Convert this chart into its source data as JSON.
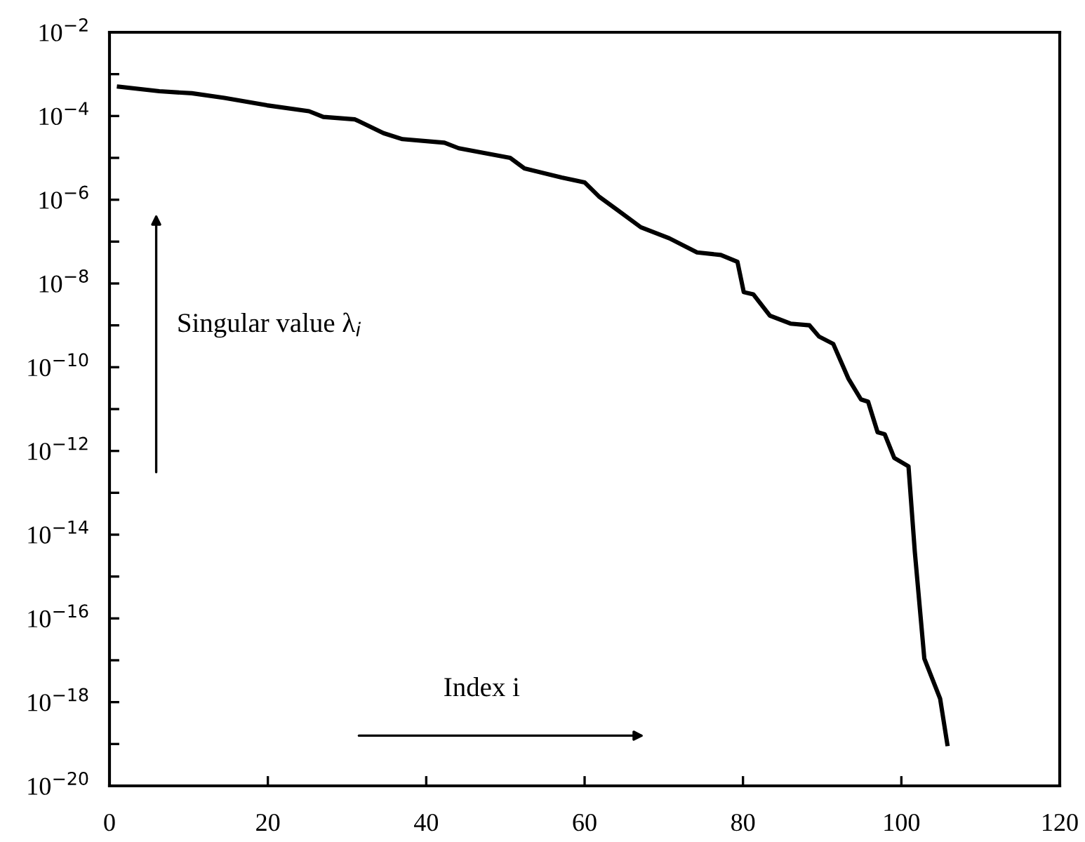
{
  "chart_data": {
    "type": "line",
    "annotations": [
      "Singular value λ$_{i}$",
      "Index i"
    ],
    "x": [
      1.2,
      6.3,
      10.4,
      14.5,
      19.9,
      25.2,
      27,
      31,
      34.6,
      37,
      42.3,
      44.1,
      50.6,
      52.4,
      57.1,
      60,
      61.8,
      64.2,
      67.1,
      70.7,
      74.2,
      77.2,
      79.3,
      80.1,
      81.3,
      83.4,
      86,
      88.4,
      89.6,
      91.4,
      93.3,
      94.9,
      95.8,
      97,
      97.9,
      99.1,
      100.9,
      101.7,
      102.9,
      104.9,
      105.8
    ],
    "series": [
      {
        "color": "#000000",
        "values": [
          0.0005,
          0.00039,
          0.00035,
          0.00027,
          0.00018,
          0.00013,
          9.5e-05,
          8.3e-05,
          3.9e-05,
          2.8e-05,
          2.3e-05,
          1.7e-05,
          1e-05,
          5.6e-06,
          3.4e-06,
          2.6e-06,
          1.2e-06,
          5.6e-07,
          2.2e-07,
          1.2e-07,
          5.5e-08,
          4.8e-08,
          3.3e-08,
          6.2e-09,
          5.5e-09,
          1.7e-09,
          1.1e-09,
          1e-09,
          5.4e-10,
          3.6e-10,
          5.4e-11,
          1.7e-11,
          1.5e-11,
          2.8e-12,
          2.5e-12,
          6.8e-13,
          4.3e-13,
          3.9e-15,
          1.1e-17,
          1.2e-18,
          1e-19
        ]
      }
    ],
    "log": "y",
    "xlim": [
      0,
      120
    ],
    "ylim": [
      1e-20,
      0.01
    ],
    "xticks": [
      0,
      20,
      40,
      60,
      80,
      100,
      120
    ],
    "yticks": [
      {
        "value": 1e-20,
        "label": "10$^{−20}$"
      },
      {
        "value": 1e-19,
        "label": null
      },
      {
        "value": 1e-18,
        "label": "10$^{−18}$"
      },
      {
        "value": 1e-17,
        "label": null
      },
      {
        "value": 1e-16,
        "label": "10$^{−16}$"
      },
      {
        "value": 1e-15,
        "label": null
      },
      {
        "value": 1e-14,
        "label": "10$^{−14}$"
      },
      {
        "value": 1e-13,
        "label": null
      },
      {
        "value": 1e-12,
        "label": "10$^{−12}$"
      },
      {
        "value": 1e-11,
        "label": null
      },
      {
        "value": 1e-10,
        "label": "10$^{−10}$"
      },
      {
        "value": 1e-09,
        "label": null
      },
      {
        "value": 1e-08,
        "label": "10$^{−8}$"
      },
      {
        "value": 1e-07,
        "label": null
      },
      {
        "value": 1e-06,
        "label": "10$^{−6}$"
      },
      {
        "value": 1e-05,
        "label": null
      },
      {
        "value": 0.0001,
        "label": "10$^{−4}$"
      },
      {
        "value": 0.001,
        "label": null
      },
      {
        "value": 0.01,
        "label": "10$^{−2}$"
      }
    ],
    "grid": false,
    "marker": "none",
    "line_style": "solid"
  }
}
